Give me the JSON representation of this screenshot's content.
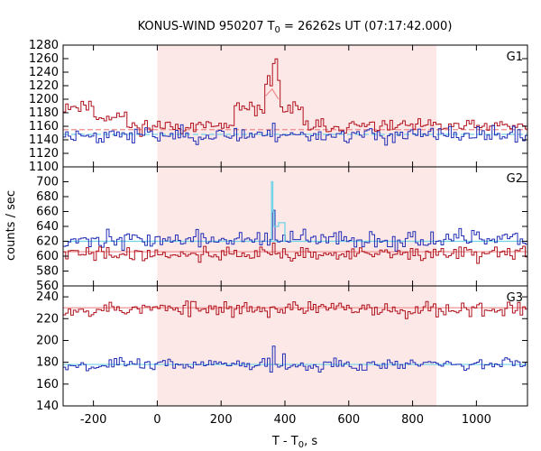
{
  "chart_data": {
    "type": "line",
    "title_prefix": "KONUS-WIND 950207 T",
    "title_sub": "0",
    "title_suffix": " = 26262s UT (07:17:42.000)",
    "xlabel_prefix": "T - T",
    "xlabel_sub": "0",
    "xlabel_suffix": ", s",
    "ylabel": "counts / sec",
    "xlim": [
      -295,
      1160
    ],
    "x_ticks": [
      -200,
      0,
      200,
      400,
      600,
      800,
      1000
    ],
    "x_tick_labels": [
      "-200",
      "0",
      "200",
      "400",
      "600",
      "800",
      "1000"
    ],
    "highlight_interval": [
      0,
      875
    ],
    "colors": {
      "highlight": "#fde8e8",
      "red_series": "#b0101c",
      "blue_series": "#1f2cb5",
      "cyan_fit": "#6fd4e6",
      "pink_fit": "#ee8a8a",
      "axis": "#000000"
    },
    "panels": [
      {
        "label": "G1",
        "ylim": [
          1100,
          1280
        ],
        "y_ticks": [
          1100,
          1120,
          1140,
          1160,
          1180,
          1200,
          1220,
          1240,
          1260,
          1280
        ],
        "series": [
          {
            "color_key": "red_series",
            "bin": 8,
            "base": 1160,
            "noise": 7,
            "seed": 11,
            "features": [
              {
                "x0": -295,
                "x1": -200,
                "add": 30
              },
              {
                "x0": -200,
                "x1": -100,
                "add": 15
              },
              {
                "x0": 240,
                "x1": 450,
                "add": 25
              },
              {
                "x0": 330,
                "x1": 380,
                "add": 40
              },
              {
                "x0": 355,
                "x1": 370,
                "add": 35
              }
            ]
          },
          {
            "color_key": "blue_series",
            "bin": 8,
            "base": 1147,
            "noise": 8,
            "seed": 23,
            "features": [
              {
                "x0": 355,
                "x1": 365,
                "add": 28
              }
            ]
          }
        ],
        "fits": [
          {
            "color_key": "pink_fit",
            "dashed": true,
            "segments": [
              [
                -295,
                1155
              ],
              [
                1160,
                1155
              ]
            ]
          },
          {
            "color_key": "cyan_fit",
            "dashed": true,
            "segments": [
              [
                -295,
                1148
              ],
              [
                1160,
                1148
              ]
            ]
          },
          {
            "color_key": "pink_fit",
            "dashed": false,
            "segments": [
              [
                340,
                1205
              ],
              [
                360,
                1215
              ],
              [
                380,
                1200
              ]
            ]
          }
        ]
      },
      {
        "label": "G2",
        "ylim": [
          560,
          720
        ],
        "y_ticks": [
          560,
          580,
          600,
          620,
          640,
          660,
          680,
          700
        ],
        "series": [
          {
            "color_key": "blue_series",
            "bin": 8,
            "base": 622,
            "noise": 8,
            "seed": 37,
            "features": [
              {
                "x0": 355,
                "x1": 365,
                "add": 40
              }
            ]
          },
          {
            "color_key": "red_series",
            "bin": 8,
            "base": 603,
            "noise": 7,
            "seed": 41,
            "features": [
              {
                "x0": 355,
                "x1": 365,
                "add": 10
              }
            ]
          }
        ],
        "fits": [
          {
            "color_key": "cyan_fit",
            "dashed": false,
            "segments": [
              [
                -295,
                620
              ],
              [
                1160,
                620
              ]
            ]
          },
          {
            "color_key": "pink_fit",
            "dashed": false,
            "segments": [
              [
                -295,
                606
              ],
              [
                1160,
                606
              ]
            ]
          }
        ],
        "spikes": [
          {
            "color_key": "cyan_fit",
            "points": [
              [
                355,
                620
              ],
              [
                358,
                620
              ],
              [
                358,
                700
              ],
              [
                362,
                700
              ],
              [
                362,
                660
              ],
              [
                366,
                660
              ],
              [
                366,
                640
              ],
              [
                380,
                640
              ],
              [
                380,
                645
              ],
              [
                400,
                645
              ],
              [
                400,
                620
              ]
            ]
          }
        ]
      },
      {
        "label": "G3",
        "ylim": [
          140,
          250
        ],
        "y_ticks": [
          140,
          160,
          180,
          200,
          220,
          240
        ],
        "series": [
          {
            "color_key": "red_series",
            "bin": 8,
            "base": 229,
            "noise": 5,
            "seed": 53,
            "features": []
          },
          {
            "color_key": "blue_series",
            "bin": 8,
            "base": 178,
            "noise": 4,
            "seed": 67,
            "features": [
              {
                "x0": 355,
                "x1": 365,
                "add": 15
              },
              {
                "x0": 390,
                "x1": 400,
                "add": 10
              }
            ]
          }
        ],
        "fits": [
          {
            "color_key": "pink_fit",
            "dashed": false,
            "segments": [
              [
                -295,
                230
              ],
              [
                1160,
                230
              ]
            ]
          },
          {
            "color_key": "cyan_fit",
            "dashed": false,
            "segments": [
              [
                -295,
                178
              ],
              [
                1160,
                178
              ]
            ]
          }
        ]
      }
    ]
  }
}
